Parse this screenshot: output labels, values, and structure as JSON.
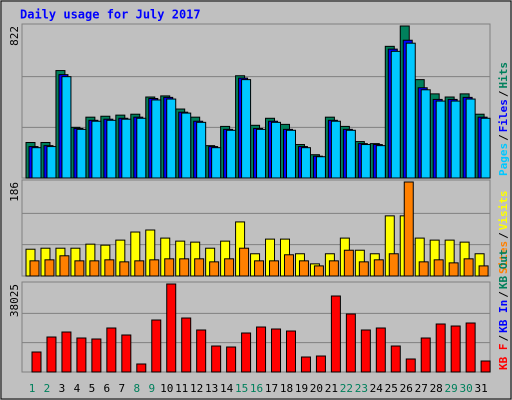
{
  "chart_data": [
    {
      "type": "bar",
      "title": "Daily usage for July 2017",
      "series": [
        {
          "name": "Pages",
          "color": "#00c8ff",
          "values": [
            164,
            170,
            548,
            263,
            307,
            312,
            318,
            323,
            422,
            427,
            351,
            301,
            164,
            258,
            532,
            263,
            301,
            258,
            164,
            115,
            307,
            258,
            181,
            175,
            685,
            729,
            477,
            416,
            416,
            427,
            323
          ]
        },
        {
          "name": "Files",
          "color": "#0000ff",
          "values": [
            170,
            175,
            559,
            268,
            312,
            318,
            323,
            329,
            430,
            436,
            356,
            307,
            170,
            263,
            540,
            268,
            307,
            263,
            170,
            118,
            312,
            263,
            186,
            181,
            697,
            745,
            488,
            425,
            425,
            436,
            329
          ]
        },
        {
          "name": "Hits",
          "color": "#00805c",
          "values": [
            192,
            192,
            581,
            274,
            329,
            334,
            340,
            345,
            438,
            444,
            373,
            329,
            175,
            279,
            553,
            285,
            323,
            290,
            181,
            126,
            329,
            279,
            197,
            186,
            712,
            822,
            532,
            455,
            438,
            455,
            345
          ]
        }
      ],
      "ylim": [
        0,
        822
      ],
      "yticks": [
        822
      ],
      "gridlines": [
        274,
        548
      ]
    },
    {
      "type": "bar",
      "series": [
        {
          "name": "Sites",
          "color": "#ff8000",
          "values": [
            30,
            32,
            40,
            30,
            30,
            32,
            28,
            30,
            32,
            34,
            34,
            34,
            28,
            34,
            55,
            30,
            30,
            42,
            30,
            20,
            30,
            51,
            28,
            32,
            44,
            186,
            28,
            32,
            26,
            34,
            20
          ]
        },
        {
          "name": "Visits",
          "color": "#ffff00",
          "values": [
            53,
            55,
            55,
            55,
            63,
            61,
            71,
            87,
            91,
            75,
            69,
            67,
            55,
            69,
            107,
            44,
            73,
            73,
            44,
            24,
            44,
            75,
            51,
            44,
            119,
            119,
            75,
            71,
            71,
            67,
            44
          ]
        }
      ],
      "ylim": [
        0,
        186
      ],
      "yticks": [
        186
      ],
      "gridlines": [
        62,
        124
      ]
    },
    {
      "type": "bar",
      "categories": [
        "1",
        "2",
        "3",
        "4",
        "5",
        "6",
        "7",
        "8",
        "9",
        "10",
        "11",
        "12",
        "13",
        "14",
        "15",
        "16",
        "17",
        "18",
        "19",
        "20",
        "21",
        "22",
        "23",
        "24",
        "25",
        "26",
        "27",
        "28",
        "29",
        "30",
        "31"
      ],
      "category_colors": [
        "#00805c",
        "#00805c",
        "#000000",
        "#000000",
        "#000000",
        "#000000",
        "#000000",
        "#00805c",
        "#00805c",
        "#000000",
        "#000000",
        "#000000",
        "#000000",
        "#000000",
        "#00805c",
        "#00805c",
        "#000000",
        "#000000",
        "#000000",
        "#000000",
        "#000000",
        "#00805c",
        "#00805c",
        "#000000",
        "#000000",
        "#000000",
        "#000000",
        "#000000",
        "#00805c",
        "#00805c",
        "#000000"
      ],
      "series": [
        {
          "name": "KB F",
          "color": "#ff0000",
          "values": [
            8640,
            15120,
            17280,
            14690,
            14260,
            19010,
            15990,
            3460,
            22470,
            38025,
            23330,
            18150,
            11230,
            10800,
            16850,
            19440,
            18580,
            17710,
            6480,
            6910,
            32840,
            25060,
            18150,
            19010,
            11230,
            5620,
            14690,
            20740,
            19870,
            21170,
            4750
          ]
        },
        {
          "name": "KB In",
          "color": "#0000ff",
          "values": [
            0,
            0,
            0,
            0,
            0,
            0,
            0,
            0,
            0,
            0,
            0,
            0,
            0,
            0,
            0,
            0,
            0,
            0,
            0,
            0,
            0,
            0,
            0,
            0,
            0,
            0,
            0,
            0,
            0,
            0,
            0
          ]
        },
        {
          "name": "KB Out",
          "color": "#00805c",
          "values": [
            0,
            0,
            0,
            0,
            0,
            0,
            0,
            0,
            0,
            0,
            0,
            0,
            0,
            0,
            0,
            0,
            0,
            0,
            0,
            0,
            0,
            0,
            0,
            0,
            0,
            0,
            0,
            0,
            0,
            0,
            0
          ]
        }
      ],
      "ylim": [
        0,
        38025
      ],
      "yticks": [
        38025
      ],
      "gridlines": [
        12675,
        25350
      ]
    }
  ],
  "legend_separator": "/"
}
